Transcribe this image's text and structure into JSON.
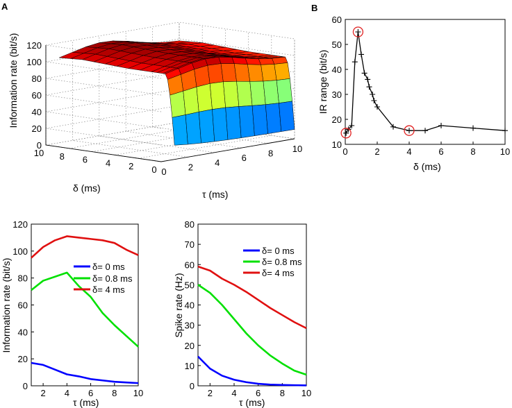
{
  "panels": {
    "a": "A",
    "b": "B"
  },
  "chart_data": [
    {
      "id": "surface",
      "type": "surface",
      "title": "",
      "xlabel": "τ (ms)",
      "ylabel": "δ (ms)",
      "zlabel": "Information rate (bit/s)",
      "tau": [
        1,
        2,
        3,
        4,
        5,
        6,
        7,
        8,
        9,
        10
      ],
      "delta": [
        0,
        0.2,
        0.4,
        0.6,
        0.8,
        1,
        1.5,
        2,
        3,
        4,
        5,
        6,
        7,
        8,
        9,
        10
      ],
      "xticks": [
        "0",
        "2",
        "4",
        "6",
        "8",
        "10"
      ],
      "yticks": [
        "0",
        "2",
        "4",
        "6",
        "8",
        "10"
      ],
      "zticks": [
        "0",
        "20",
        "40",
        "60",
        "80",
        "100",
        "120"
      ],
      "zlim": [
        0,
        120
      ],
      "colormap": "jet"
    },
    {
      "id": "ir-range",
      "type": "line",
      "xlabel": "δ (ms)",
      "ylabel": "IR range (bit/s)",
      "xlim": [
        0,
        10
      ],
      "ylim": [
        10,
        60
      ],
      "xticks": [
        "0",
        "2",
        "4",
        "6",
        "8",
        "10"
      ],
      "yticks": [
        "10",
        "20",
        "30",
        "40",
        "50",
        "60"
      ],
      "x": [
        0.05,
        0.2,
        0.4,
        0.6,
        0.8,
        1.0,
        1.2,
        1.4,
        1.5,
        1.7,
        1.8,
        2.0,
        3.0,
        4.0,
        5.0,
        6.0,
        8.0,
        10.0
      ],
      "y": [
        14.5,
        16,
        17.5,
        43,
        55,
        46,
        38.5,
        36,
        33,
        30,
        27.5,
        25,
        17,
        15.5,
        15.5,
        17.5,
        16.5,
        15.5
      ],
      "highlighted_x": [
        0.05,
        0.8,
        4.0
      ],
      "color": "#000000",
      "highlight_color": "#e02020"
    },
    {
      "id": "info-rate",
      "type": "line",
      "xlabel": "τ (ms)",
      "ylabel": "Information rate (bit/s)",
      "xlim": [
        1,
        10
      ],
      "ylim": [
        0,
        120
      ],
      "xticks": [
        "2",
        "4",
        "6",
        "8",
        "10"
      ],
      "yticks": [
        "0",
        "20",
        "40",
        "60",
        "80",
        "100",
        "120"
      ],
      "x": [
        1,
        2,
        3,
        4,
        5,
        6,
        7,
        8,
        9,
        10
      ],
      "series": [
        {
          "name": "δ= 0 ms",
          "color": "#0000ff",
          "values": [
            17,
            15.5,
            12,
            8.5,
            7,
            5,
            4,
            3,
            2.5,
            2
          ]
        },
        {
          "name": "δ= 0.8 ms",
          "color": "#00e000",
          "values": [
            71,
            78,
            81,
            84,
            74,
            66,
            54,
            45,
            37,
            29
          ]
        },
        {
          "name": "δ= 4 ms",
          "color": "#e01010",
          "values": [
            95,
            103,
            108,
            111,
            110,
            109,
            108,
            106,
            101,
            97
          ]
        }
      ]
    },
    {
      "id": "spike-rate",
      "type": "line",
      "xlabel": "τ (ms)",
      "ylabel": "Spike rate (Hz)",
      "xlim": [
        1,
        10
      ],
      "ylim": [
        0,
        80
      ],
      "xticks": [
        "2",
        "4",
        "6",
        "8",
        "10"
      ],
      "yticks": [
        "0",
        "10",
        "20",
        "30",
        "40",
        "50",
        "60",
        "70",
        "80"
      ],
      "x": [
        1,
        2,
        3,
        4,
        5,
        6,
        7,
        8,
        9,
        10
      ],
      "series": [
        {
          "name": "δ= 0 ms",
          "color": "#0000ff",
          "values": [
            14.5,
            8.5,
            5,
            3,
            1.8,
            1,
            0.6,
            0.4,
            0.3,
            0.2
          ]
        },
        {
          "name": "δ= 0.8 ms",
          "color": "#00e000",
          "values": [
            50,
            46,
            40,
            33,
            26,
            20,
            15,
            11,
            7.5,
            5.5
          ]
        },
        {
          "name": "δ= 4 ms",
          "color": "#e01010",
          "values": [
            59,
            57,
            53,
            50,
            46.5,
            42.5,
            38.5,
            35,
            31.5,
            28.5
          ]
        }
      ]
    }
  ]
}
